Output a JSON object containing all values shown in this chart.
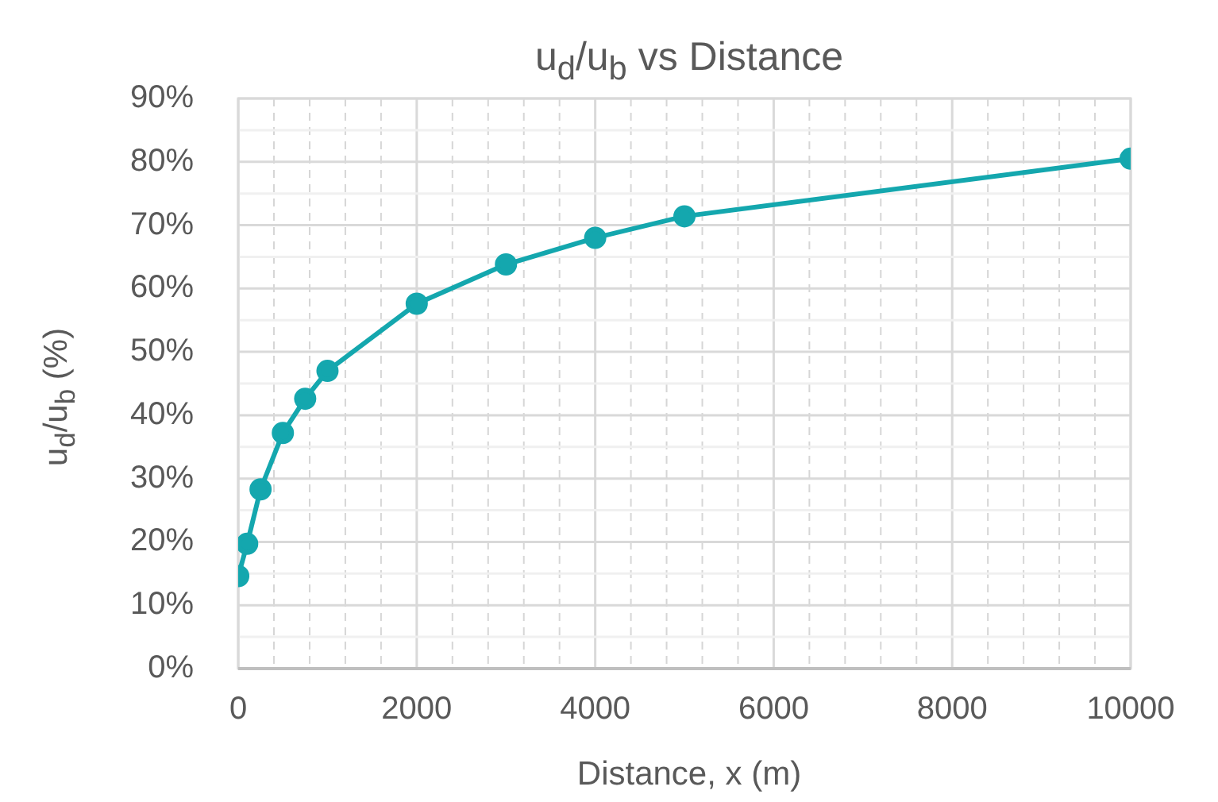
{
  "chart_data": {
    "type": "line",
    "title": "u$_{d}$/u$_{b}$ vs Distance",
    "xlabel": "Distance, x (m)",
    "ylabel": "u$_{d}$/u$_{b}$ (%)",
    "x": [
      0,
      100,
      250,
      500,
      750,
      1000,
      2000,
      3000,
      4000,
      5000,
      10000
    ],
    "series": [
      {
        "color": "#14a7ae",
        "values": [
          14.6,
          19.7,
          28.3,
          37.2,
          42.6,
          47.0,
          57.6,
          63.8,
          68.0,
          71.4,
          80.5
        ]
      }
    ],
    "xlim": [
      0,
      10000
    ],
    "xticks": [
      0,
      {
        "value": 400,
        "label": null
      },
      {
        "value": 800,
        "label": null
      },
      {
        "value": 1200,
        "label": null
      },
      {
        "value": 1600,
        "label": null
      },
      2000,
      {
        "value": 2400,
        "label": null
      },
      {
        "value": 2800,
        "label": null
      },
      {
        "value": 3200,
        "label": null
      },
      {
        "value": 3600,
        "label": null
      },
      4000,
      {
        "value": 4400,
        "label": null
      },
      {
        "value": 4800,
        "label": null
      },
      {
        "value": 5200,
        "label": null
      },
      {
        "value": 5600,
        "label": null
      },
      6000,
      {
        "value": 6400,
        "label": null
      },
      {
        "value": 6800,
        "label": null
      },
      {
        "value": 7200,
        "label": null
      },
      {
        "value": 7600,
        "label": null
      },
      8000,
      {
        "value": 8400,
        "label": null
      },
      {
        "value": 8800,
        "label": null
      },
      {
        "value": 9200,
        "label": null
      },
      {
        "value": 9600,
        "label": null
      },
      10000
    ],
    "ylim": [
      0,
      90
    ],
    "yticks": [
      {
        "value": 0,
        "label": "0%"
      },
      {
        "value": 5,
        "label": null
      },
      {
        "value": 10,
        "label": "10%"
      },
      {
        "value": 15,
        "label": null
      },
      {
        "value": 20,
        "label": "20%"
      },
      {
        "value": 25,
        "label": null
      },
      {
        "value": 30,
        "label": "30%"
      },
      {
        "value": 35,
        "label": null
      },
      {
        "value": 40,
        "label": "40%"
      },
      {
        "value": 45,
        "label": null
      },
      {
        "value": 50,
        "label": "50%"
      },
      {
        "value": 55,
        "label": null
      },
      {
        "value": 60,
        "label": "60%"
      },
      {
        "value": 65,
        "label": null
      },
      {
        "value": 70,
        "label": "70%"
      },
      {
        "value": 75,
        "label": null
      },
      {
        "value": 80,
        "label": "80%"
      },
      {
        "value": 85,
        "label": null
      },
      {
        "value": 90,
        "label": "90%"
      }
    ],
    "grid": true,
    "marker": "circle",
    "line_style": "solid",
    "legend": false
  }
}
